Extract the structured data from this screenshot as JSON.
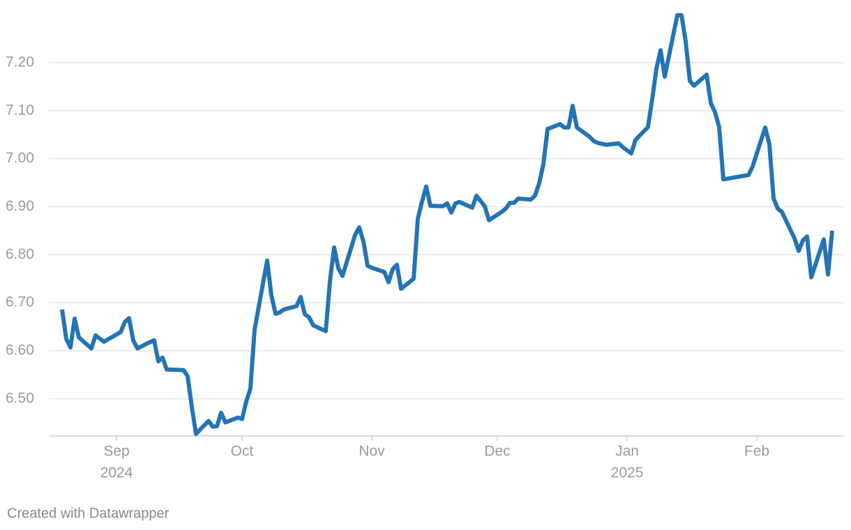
{
  "chart_data": {
    "type": "line",
    "footer": "Created with Datawrapper",
    "x": [
      "2024-08-19",
      "2024-08-20",
      "2024-08-21",
      "2024-08-22",
      "2024-08-23",
      "2024-08-26",
      "2024-08-27",
      "2024-08-29",
      "2024-09-02",
      "2024-09-03",
      "2024-09-04",
      "2024-09-05",
      "2024-09-06",
      "2024-09-09",
      "2024-09-10",
      "2024-09-11",
      "2024-09-12",
      "2024-09-13",
      "2024-09-17",
      "2024-09-18",
      "2024-09-19",
      "2024-09-20",
      "2024-09-23",
      "2024-09-24",
      "2024-09-25",
      "2024-09-26",
      "2024-09-27",
      "2024-09-30",
      "2024-10-01",
      "2024-10-02",
      "2024-10-03",
      "2024-10-04",
      "2024-10-07",
      "2024-10-08",
      "2024-10-09",
      "2024-10-10",
      "2024-10-11",
      "2024-10-14",
      "2024-10-15",
      "2024-10-16",
      "2024-10-17",
      "2024-10-18",
      "2024-10-21",
      "2024-10-22",
      "2024-10-23",
      "2024-10-24",
      "2024-10-25",
      "2024-10-28",
      "2024-10-29",
      "2024-10-30",
      "2024-10-31",
      "2024-11-01",
      "2024-11-04",
      "2024-11-05",
      "2024-11-06",
      "2024-11-07",
      "2024-11-08",
      "2024-11-11",
      "2024-11-12",
      "2024-11-13",
      "2024-11-14",
      "2024-11-15",
      "2024-11-18",
      "2024-11-19",
      "2024-11-20",
      "2024-11-21",
      "2024-11-22",
      "2024-11-25",
      "2024-11-26",
      "2024-11-27",
      "2024-11-28",
      "2024-11-29",
      "2024-12-02",
      "2024-12-03",
      "2024-12-04",
      "2024-12-05",
      "2024-12-06",
      "2024-12-09",
      "2024-12-10",
      "2024-12-11",
      "2024-12-12",
      "2024-12-13",
      "2024-12-16",
      "2024-12-17",
      "2024-12-18",
      "2024-12-19",
      "2024-12-20",
      "2024-12-23",
      "2024-12-24",
      "2024-12-25",
      "2024-12-27",
      "2024-12-30",
      "2024-12-31",
      "2025-01-02",
      "2025-01-03",
      "2025-01-06",
      "2025-01-07",
      "2025-01-08",
      "2025-01-09",
      "2025-01-10",
      "2025-01-13",
      "2025-01-14",
      "2025-01-15",
      "2025-01-16",
      "2025-01-17",
      "2025-01-20",
      "2025-01-21",
      "2025-01-22",
      "2025-01-23",
      "2025-01-24",
      "2025-01-30",
      "2025-01-31",
      "2025-02-03",
      "2025-02-04",
      "2025-02-05",
      "2025-02-06",
      "2025-02-07",
      "2025-02-10",
      "2025-02-11",
      "2025-02-12",
      "2025-02-13",
      "2025-02-14",
      "2025-02-17",
      "2025-02-18",
      "2025-02-19"
    ],
    "series": [
      {
        "color": "#2474b5",
        "values": [
          6.686,
          6.625,
          6.607,
          6.667,
          6.628,
          6.605,
          6.632,
          6.619,
          6.639,
          6.66,
          6.668,
          6.622,
          6.605,
          6.618,
          6.622,
          6.578,
          6.586,
          6.561,
          6.56,
          6.547,
          6.483,
          6.427,
          6.454,
          6.442,
          6.443,
          6.471,
          6.451,
          6.461,
          6.458,
          6.494,
          6.522,
          6.644,
          6.788,
          6.716,
          6.677,
          6.68,
          6.686,
          6.693,
          6.712,
          6.676,
          6.67,
          6.653,
          6.641,
          6.745,
          6.815,
          6.772,
          6.756,
          6.841,
          6.857,
          6.828,
          6.777,
          6.773,
          6.764,
          6.743,
          6.77,
          6.779,
          6.729,
          6.75,
          6.875,
          6.911,
          6.942,
          6.902,
          6.901,
          6.907,
          6.888,
          6.907,
          6.91,
          6.898,
          6.923,
          6.912,
          6.901,
          6.872,
          6.889,
          6.896,
          6.908,
          6.908,
          6.917,
          6.915,
          6.923,
          6.949,
          6.989,
          7.062,
          7.072,
          7.065,
          7.065,
          7.11,
          7.065,
          7.046,
          7.037,
          7.033,
          7.029,
          7.032,
          7.024,
          7.011,
          7.039,
          7.066,
          7.124,
          7.187,
          7.226,
          7.171,
          7.299,
          7.299,
          7.244,
          7.162,
          7.152,
          7.175,
          7.116,
          7.097,
          7.066,
          6.957,
          6.966,
          6.984,
          7.065,
          7.03,
          6.917,
          6.896,
          6.889,
          6.834,
          6.808,
          6.83,
          6.838,
          6.753,
          6.832,
          6.759,
          6.85
        ]
      }
    ],
    "xlim": [
      "2024-08-19",
      "2025-02-19"
    ],
    "xticks": [
      {
        "value": "2024-09-01",
        "label": "Sep"
      },
      {
        "value": "2024-10-01",
        "label": "Oct"
      },
      {
        "value": "2024-11-01",
        "label": "Nov"
      },
      {
        "value": "2024-12-01",
        "label": "Dec"
      },
      {
        "value": "2025-01-01",
        "label": "Jan"
      },
      {
        "value": "2025-02-01",
        "label": "Feb"
      }
    ],
    "xtick_years": [
      {
        "value": "2024-09-01",
        "label": "2024"
      },
      {
        "value": "2025-01-01",
        "label": "2025"
      }
    ],
    "ylim": [
      6.42,
      7.3
    ],
    "yticks": [
      {
        "value": 6.5,
        "label": "6.50"
      },
      {
        "value": 6.6,
        "label": "6.60"
      },
      {
        "value": 6.7,
        "label": "6.70"
      },
      {
        "value": 6.8,
        "label": "6.80"
      },
      {
        "value": 6.9,
        "label": "6.90"
      },
      {
        "value": 7.0,
        "label": "7.00"
      },
      {
        "value": 7.1,
        "label": "7.10"
      },
      {
        "value": 7.2,
        "label": "7.20"
      }
    ],
    "grid": true
  }
}
